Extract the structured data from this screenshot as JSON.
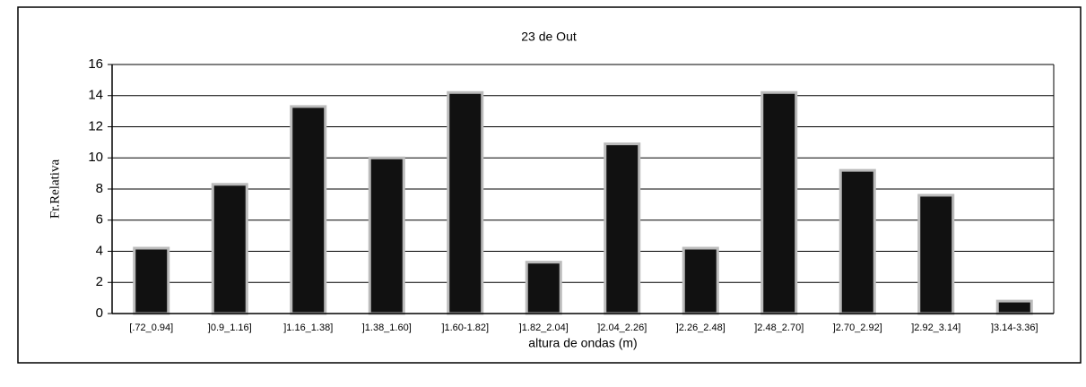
{
  "chart_data": {
    "type": "bar",
    "title": "23 de Out",
    "ylabel": "Fr.Relativa",
    "xlabel": "altura de ondas (m)",
    "categories": [
      "[.72_0.94]",
      "]0.9_1.16]",
      "]1.16_1.38]",
      "]1.38_1.60]",
      "]1.60-1.82]",
      "]1.82_2.04]",
      "]2.04_2.26]",
      "]2.26_2.48]",
      "]2.48_2.70]",
      "]2.70_2.92]",
      "]2.92_3.14]",
      "]3.14-3.36]"
    ],
    "values": [
      4.2,
      8.3,
      13.3,
      10.0,
      14.2,
      3.3,
      10.9,
      4.2,
      14.2,
      9.2,
      7.6,
      0.8
    ],
    "color": "#111111",
    "ylim": [
      0,
      16
    ],
    "yticks": [
      0,
      2,
      4,
      6,
      8,
      10,
      12,
      14,
      16
    ],
    "grid": true
  }
}
